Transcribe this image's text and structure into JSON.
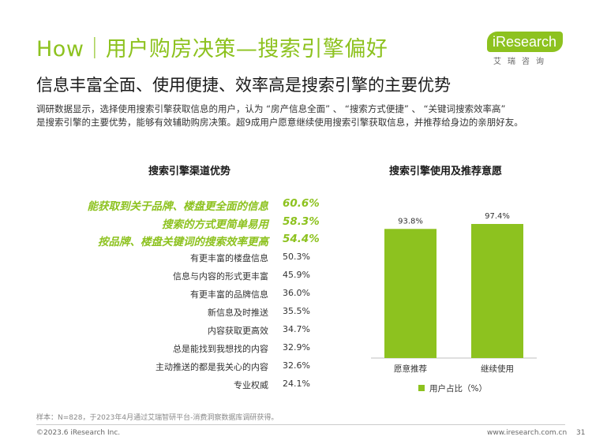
{
  "page": {
    "title": "How｜用户购房决策—搜索引擎偏好",
    "subtitle": "信息丰富全面、使用便捷、效率高是搜索引擎的主要优势",
    "description_lines": [
      "调研数据显示，选择使用搜索引擎获取信息的用户，认为 “房产信息全面” 、 “搜索方式便捷” 、 “关键词搜索效率高”",
      "是搜索引擎的主要优势，能够有效辅助购房决策。超9成用户愿意继续使用搜索引擎获取信息，并推荐给身边的亲朋好友。"
    ],
    "logo": {
      "word": "iResearch",
      "sub": "艾瑞咨询"
    },
    "footer": {
      "note": "样本：N=828，于2023年4月通过艾瑞智研平台-消费洞察数据库调研获得。",
      "copyright": "©2023.6 iResearch Inc.",
      "url": "www.iresearch.com.cn",
      "page_number": "31"
    },
    "colors": {
      "accent": "#8dc21f",
      "text": "#333333"
    }
  },
  "chart_data": [
    {
      "type": "table",
      "title": "搜索引擎渠道优势",
      "categories": [
        "能获取到关于品牌、楼盘更全面的信息",
        "搜索的方式更简单易用",
        "按品牌、楼盘关键词的搜索效率更高",
        "有更丰富的楼盘信息",
        "信息与内容的形式更丰富",
        "有更丰富的品牌信息",
        "新信息及时推送",
        "内容获取更高效",
        "总是能找到我想找的内容",
        "主动推送的都是我关心的内容",
        "专业权威"
      ],
      "values": [
        60.6,
        58.3,
        54.4,
        50.3,
        45.9,
        36.0,
        35.5,
        34.7,
        32.9,
        32.6,
        24.1
      ],
      "value_labels": [
        "60.6%",
        "58.3%",
        "54.4%",
        "50.3%",
        "45.9%",
        "36.0%",
        "35.5%",
        "34.7%",
        "32.9%",
        "32.6%",
        "24.1%"
      ],
      "highlighted_count": 3
    },
    {
      "type": "bar",
      "title": "搜索引擎使用及推荐意愿",
      "categories": [
        "愿意推荐",
        "继续使用"
      ],
      "series": [
        {
          "name": "用户占比（%）",
          "values": [
            93.8,
            97.4
          ],
          "value_labels": [
            "93.8%",
            "97.4%"
          ]
        }
      ],
      "legend": "bottom",
      "bar_color": "#8dc21f"
    }
  ]
}
